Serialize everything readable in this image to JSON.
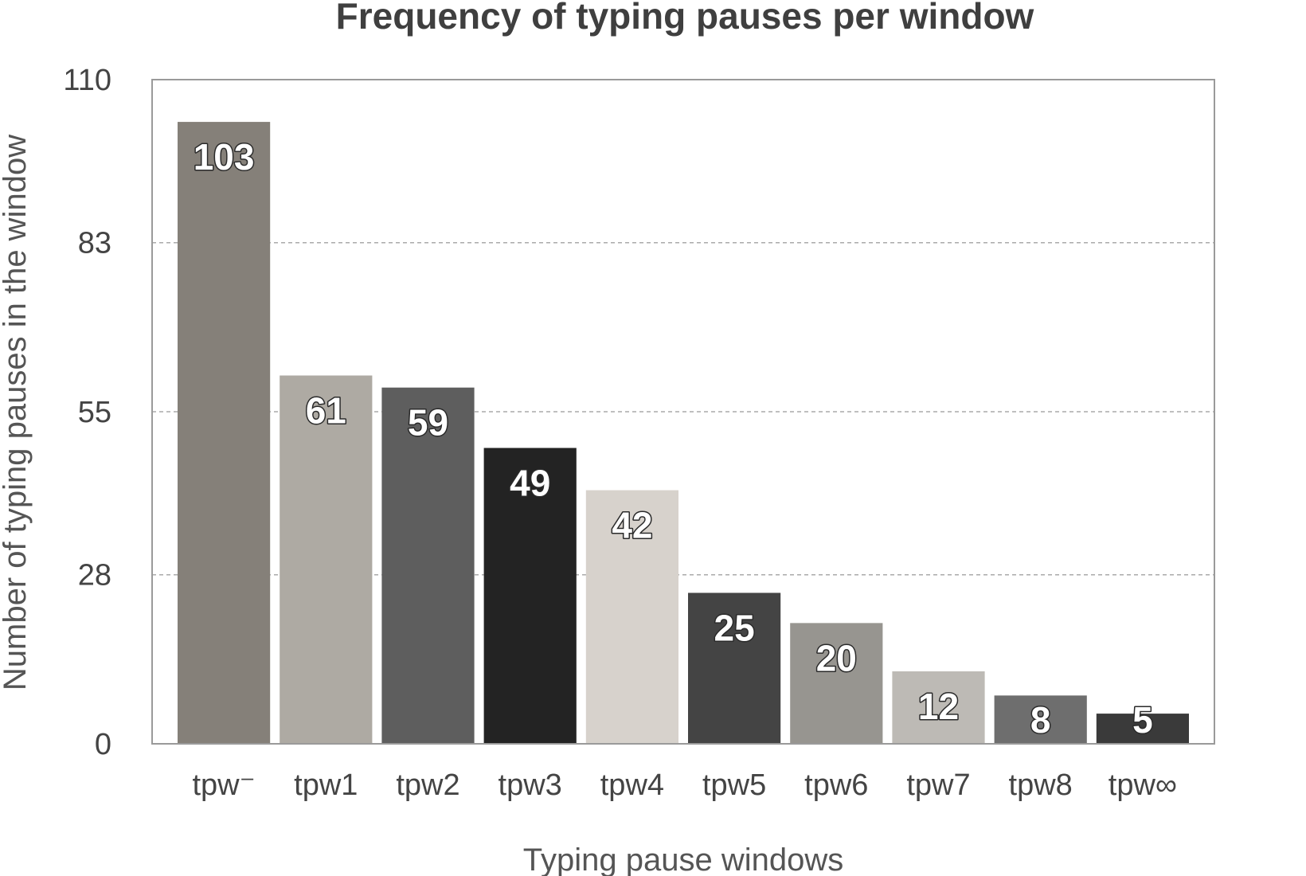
{
  "chart_data": {
    "type": "bar",
    "title": "Frequency of typing pauses per window",
    "xlabel": "Typing pause windows",
    "ylabel": "Number of typing pauses in the window",
    "categories": [
      "tpw⁻",
      "tpw1",
      "tpw2",
      "tpw3",
      "tpw4",
      "tpw5",
      "tpw6",
      "tpw7",
      "tpw8",
      "tpw∞"
    ],
    "values": [
      103,
      61,
      59,
      49,
      42,
      25,
      20,
      12,
      8,
      5
    ],
    "ylim": [
      0,
      110
    ],
    "yticks": [
      "0",
      "28",
      "55",
      "83",
      "110"
    ],
    "grid": true,
    "legend": "none",
    "bar_colors": [
      "#858079",
      "#aeaaa3",
      "#5e5e5e",
      "#232323",
      "#d7d2cc",
      "#444444",
      "#979590",
      "#bdbab5",
      "#6e6e6e",
      "#3a3a3a"
    ]
  }
}
